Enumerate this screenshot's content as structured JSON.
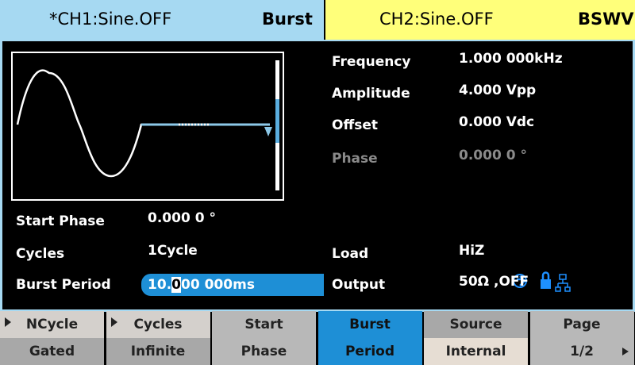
{
  "tabs": [
    {
      "channel": "*CH1:Sine.OFF",
      "mode": "Burst"
    },
    {
      "channel": "CH2:Sine.OFF",
      "mode": "BSWV"
    }
  ],
  "parameters": [
    {
      "label": "Frequency",
      "value": "1.000 000kHz"
    },
    {
      "label": "Amplitude",
      "value": "4.000 Vpp"
    },
    {
      "label": "Offset",
      "value": "0.000 Vdc"
    },
    {
      "label": "Phase",
      "value": "0.000 0 °"
    }
  ],
  "burst_settings": [
    {
      "label": "Start Phase",
      "value": "0.000 0 °"
    },
    {
      "label": "Cycles",
      "value": "1Cycle"
    },
    {
      "label": "Burst Period",
      "value": "10.000 000ms"
    }
  ],
  "output_settings": [
    {
      "label": "Load",
      "value": "HiZ"
    },
    {
      "label": "Output",
      "value": "50Ω ,OFF"
    }
  ],
  "menu": [
    {
      "lines": [
        "NCycle",
        "Gated"
      ]
    },
    {
      "lines": [
        "Cycles",
        "Infinite"
      ]
    },
    {
      "lines": [
        "Start",
        "Phase"
      ]
    },
    {
      "lines": [
        "Burst",
        "Period"
      ]
    },
    {
      "lines": [
        "Source",
        "Internal"
      ]
    },
    {
      "lines": [
        "Page",
        "1/2"
      ]
    }
  ]
}
